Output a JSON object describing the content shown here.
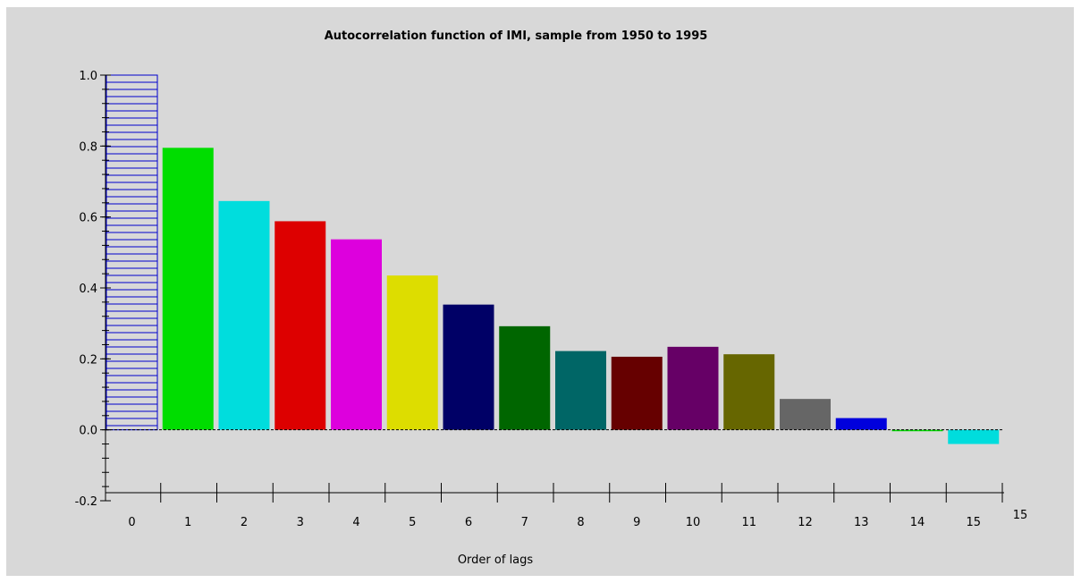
{
  "chart_data": {
    "type": "bar",
    "title": "Autocorrelation function of IMI, sample from 1950 to 1995",
    "xlabel": "Order of lags",
    "ylabel": "",
    "categories": [
      "0",
      "1",
      "2",
      "3",
      "4",
      "5",
      "6",
      "7",
      "8",
      "9",
      "10",
      "11",
      "12",
      "13",
      "14",
      "15"
    ],
    "values": [
      1.0,
      0.795,
      0.645,
      0.588,
      0.537,
      0.435,
      0.353,
      0.292,
      0.222,
      0.206,
      0.234,
      0.213,
      0.087,
      0.033,
      -0.004,
      -0.04
    ],
    "colors": [
      "#0000cc",
      "#00dd00",
      "#00dddd",
      "#dd0000",
      "#dd00dd",
      "#dddd00",
      "#000066",
      "#006600",
      "#006666",
      "#660000",
      "#660066",
      "#666600",
      "#666666",
      "#0000dd",
      "#00dd00",
      "#00dddd"
    ],
    "first_bar_style": "horizontal-hatch-outline",
    "ylim": [
      -0.2,
      1.0
    ],
    "yticks": [
      "-0.2",
      "0.0",
      "0.2",
      "0.4",
      "0.6",
      "0.8",
      "1.0"
    ],
    "x_axis_end_label": "15",
    "zero_line": "dashed",
    "grid": false,
    "legend": "none"
  }
}
